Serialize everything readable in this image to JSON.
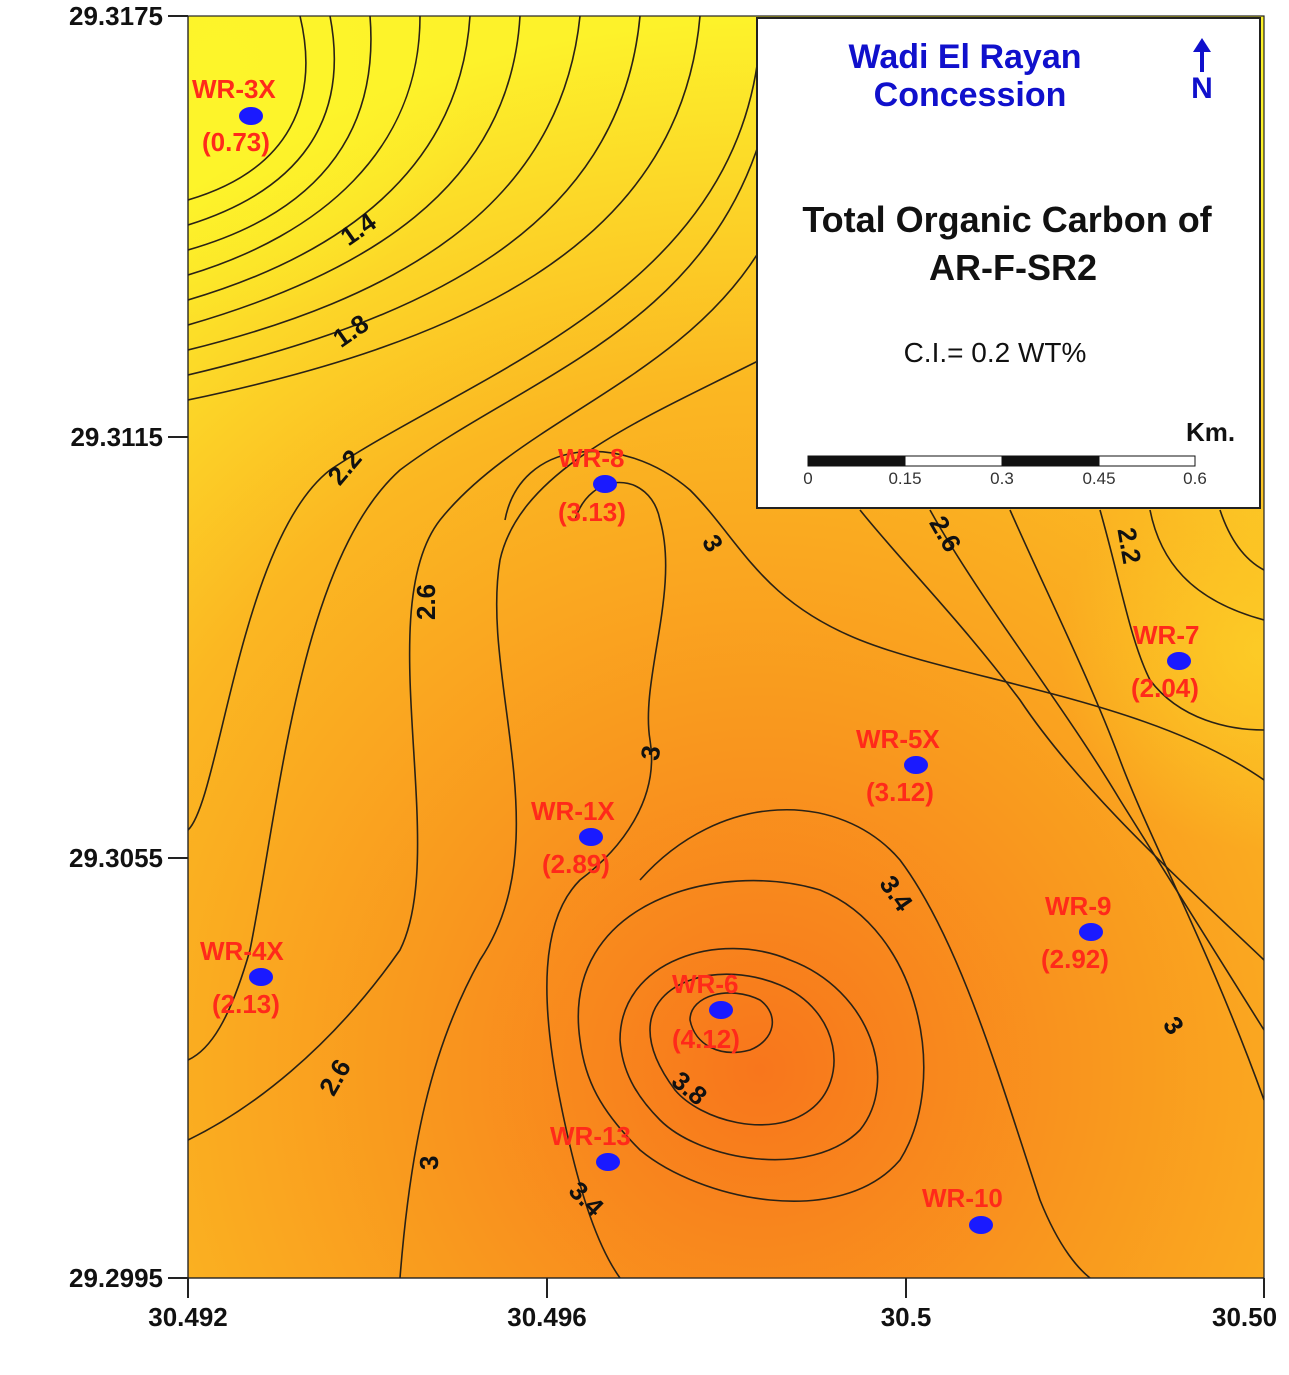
{
  "map": {
    "concession": [
      "Wadi El Rayan",
      "Concession"
    ],
    "title": [
      "Total Organic Carbon of",
      "AR-F-SR2"
    ],
    "contour_interval": "C.I.= 0.2 WT%",
    "north_arrow_label": "N",
    "scale_bar": {
      "unit": "Km.",
      "ticks": [
        "0",
        "0.15",
        "0.3",
        "0.45",
        "0.6"
      ]
    }
  },
  "axes": {
    "x_ticks": [
      "30.492",
      "30.496",
      "30.5",
      "30.50"
    ],
    "y_ticks": [
      "29.3175",
      "29.3115",
      "29.3055",
      "29.2995"
    ]
  },
  "wells": [
    {
      "name": "WR-3X",
      "toc": "(0.73)"
    },
    {
      "name": "WR-8",
      "toc": "(3.13)"
    },
    {
      "name": "WR-7",
      "toc": "(2.04)"
    },
    {
      "name": "WR-5X",
      "toc": "(3.12)"
    },
    {
      "name": "WR-1X",
      "toc": "(2.89)"
    },
    {
      "name": "WR-9",
      "toc": "(2.92)"
    },
    {
      "name": "WR-4X",
      "toc": "(2.13)"
    },
    {
      "name": "WR-6",
      "toc": "(4.12)"
    },
    {
      "name": "WR-13",
      "toc": ""
    },
    {
      "name": "WR-10",
      "toc": ""
    }
  ],
  "contour_labels": [
    "1.4",
    "1.8",
    "2.2",
    "2.6",
    "3",
    "3",
    "2.6",
    "2.2",
    "3",
    "3.4",
    "3",
    "2.6",
    "3.8",
    "3",
    "3.4"
  ],
  "colors": {
    "low": "#fdf22a",
    "mid": "#fbb41e",
    "high": "#f8761c",
    "well_marker": "#1a1aff",
    "well_text": "#ff2a1a",
    "legend_title": "#1010cc"
  }
}
